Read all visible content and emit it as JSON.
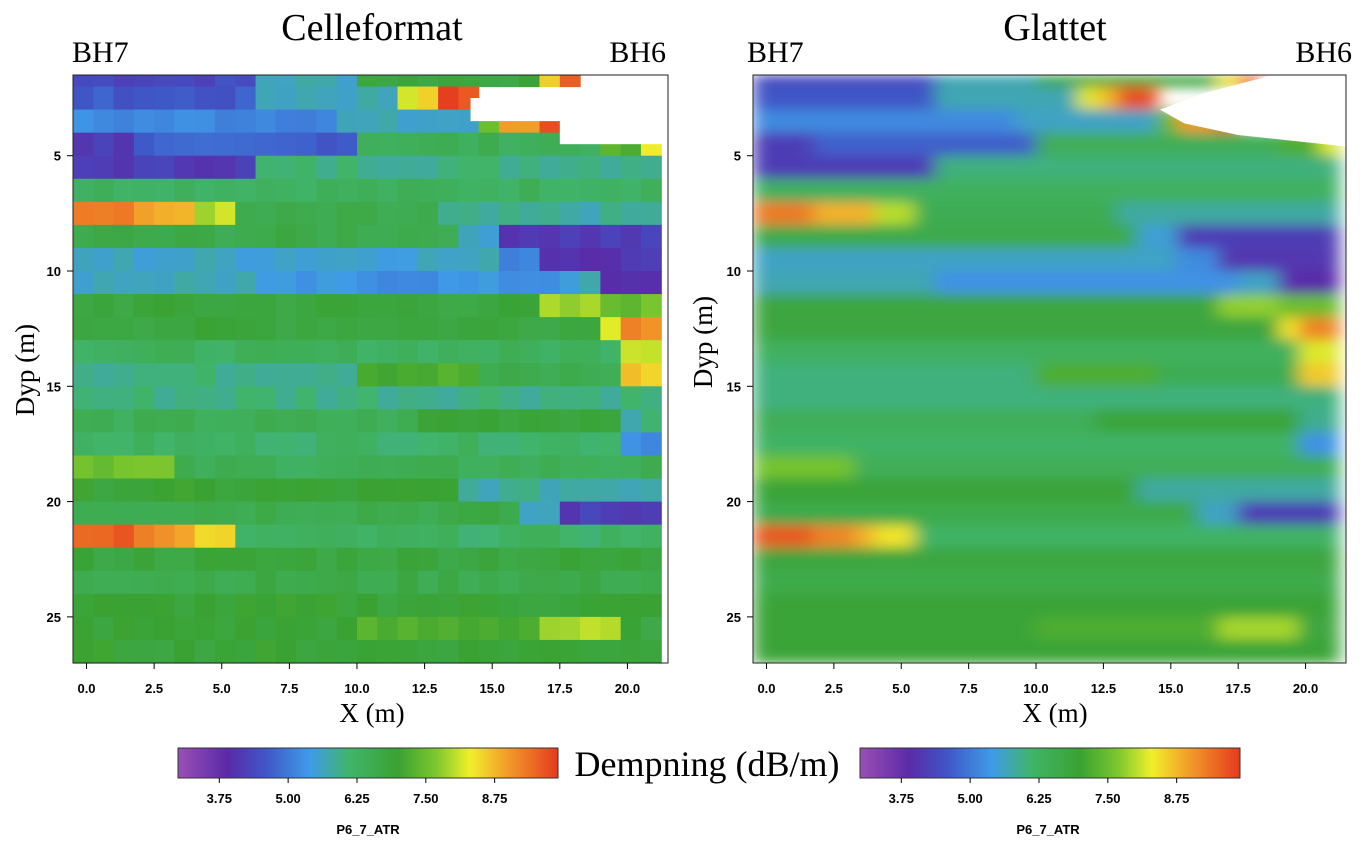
{
  "chart_data": [
    {
      "type": "heatmap",
      "title": "Celleformat",
      "left_label": "BH7",
      "right_label": "BH6",
      "xlabel": "X (m)",
      "ylabel": "Dyp (m)",
      "xlim": [
        -0.5,
        21.5
      ],
      "ylim": [
        27,
        1.5
      ],
      "x_ticks": [
        "0.0",
        "2.5",
        "5.0",
        "7.5",
        "10.0",
        "12.5",
        "15.0",
        "17.5",
        "20.0"
      ],
      "y_ticks": [
        "5",
        "10",
        "15",
        "20",
        "25"
      ],
      "cell_width_m": 0.75,
      "cell_height_m": 1.0,
      "render": "cells",
      "rows": [
        {
          "depth": 2,
          "bands": [
            [
              -0.5,
              6,
              4.4
            ],
            [
              6,
              10,
              5.7
            ],
            [
              10,
              16.5,
              6.8
            ],
            [
              16.5,
              17.5,
              8.4
            ],
            [
              17.5,
              18.5,
              9.7
            ]
          ]
        },
        {
          "depth": 3,
          "bands": [
            [
              -0.5,
              6,
              4.6
            ],
            [
              6,
              11.5,
              5.7
            ],
            [
              11.5,
              12.3,
              8.2
            ],
            [
              12.3,
              13.2,
              8.7
            ],
            [
              13.2,
              14.2,
              9.7
            ]
          ]
        },
        {
          "depth": 4,
          "bands": [
            [
              -0.5,
              9,
              5.2
            ],
            [
              9,
              14.5,
              5.6
            ],
            [
              14.5,
              15.5,
              7.4
            ],
            [
              15.5,
              16.5,
              9.0
            ],
            [
              16.5,
              17.5,
              9.8
            ]
          ]
        },
        {
          "depth": 5,
          "bands": [
            [
              -0.5,
              2,
              4.2
            ],
            [
              2,
              10,
              4.7
            ],
            [
              10,
              19,
              6.4
            ],
            [
              19,
              20.5,
              7.2
            ],
            [
              20.5,
              21.5,
              8.2
            ]
          ]
        },
        {
          "depth": 6,
          "bands": [
            [
              -0.5,
              6,
              4.2
            ],
            [
              6,
              21.5,
              6.0
            ]
          ]
        },
        {
          "depth": 7,
          "bands": [
            [
              -0.5,
              21.5,
              6.3
            ]
          ]
        },
        {
          "depth": 8,
          "bands": [
            [
              -0.5,
              2,
              9.3
            ],
            [
              2,
              4,
              8.8
            ],
            [
              4,
              5.5,
              8.0
            ],
            [
              5.5,
              13,
              6.5
            ],
            [
              13,
              21.5,
              5.8
            ]
          ]
        },
        {
          "depth": 9,
          "bands": [
            [
              -0.5,
              14,
              6.6
            ],
            [
              14,
              15,
              5.5
            ],
            [
              15,
              21.5,
              4.2
            ]
          ]
        },
        {
          "depth": 10,
          "bands": [
            [
              -0.5,
              15.5,
              5.6
            ],
            [
              15.5,
              17,
              5.2
            ],
            [
              17,
              21.5,
              4.1
            ]
          ]
        },
        {
          "depth": 11,
          "bands": [
            [
              -0.5,
              6,
              5.7
            ],
            [
              6,
              17.5,
              5.3
            ],
            [
              17.5,
              19,
              5.6
            ],
            [
              19,
              21.5,
              3.9
            ]
          ]
        },
        {
          "depth": 12,
          "bands": [
            [
              -0.5,
              17,
              6.8
            ],
            [
              17,
              19,
              7.8
            ],
            [
              19,
              21.5,
              7.5
            ]
          ]
        },
        {
          "depth": 13,
          "bands": [
            [
              -0.5,
              19,
              6.8
            ],
            [
              19,
              20,
              8.4
            ],
            [
              20,
              21.5,
              9.2
            ]
          ]
        },
        {
          "depth": 14,
          "bands": [
            [
              -0.5,
              19.5,
              6.3
            ],
            [
              19.5,
              21.5,
              8.2
            ]
          ]
        },
        {
          "depth": 15,
          "bands": [
            [
              -0.5,
              10,
              6.0
            ],
            [
              10,
              14.5,
              7.2
            ],
            [
              14.5,
              19.5,
              6.5
            ],
            [
              19.5,
              21.5,
              8.6
            ]
          ]
        },
        {
          "depth": 16,
          "bands": [
            [
              -0.5,
              21.5,
              6.0
            ]
          ]
        },
        {
          "depth": 17,
          "bands": [
            [
              -0.5,
              12,
              6.4
            ],
            [
              12,
              19.5,
              6.9
            ],
            [
              19.5,
              21.5,
              5.9
            ]
          ]
        },
        {
          "depth": 18,
          "bands": [
            [
              -0.5,
              20,
              6.2
            ],
            [
              20,
              21.5,
              5.3
            ]
          ]
        },
        {
          "depth": 19,
          "bands": [
            [
              -0.5,
              3,
              7.6
            ],
            [
              3,
              21.5,
              6.4
            ]
          ]
        },
        {
          "depth": 20,
          "bands": [
            [
              -0.5,
              14,
              6.9
            ],
            [
              14,
              21.5,
              5.8
            ]
          ]
        },
        {
          "depth": 21,
          "bands": [
            [
              -0.5,
              16,
              6.6
            ],
            [
              16,
              17.5,
              5.6
            ],
            [
              17.5,
              21.5,
              4.2
            ]
          ]
        },
        {
          "depth": 22,
          "bands": [
            [
              -0.5,
              2,
              9.6
            ],
            [
              2,
              3,
              9.2
            ],
            [
              3,
              4,
              8.8
            ],
            [
              4,
              5.5,
              8.4
            ],
            [
              5.5,
              21.5,
              6.2
            ]
          ]
        },
        {
          "depth": 23,
          "bands": [
            [
              -0.5,
              21.5,
              6.8
            ]
          ]
        },
        {
          "depth": 24,
          "bands": [
            [
              -0.5,
              21.5,
              6.6
            ]
          ]
        },
        {
          "depth": 25,
          "bands": [
            [
              -0.5,
              21.5,
              6.9
            ]
          ]
        },
        {
          "depth": 26,
          "bands": [
            [
              -0.5,
              10,
              6.9
            ],
            [
              10,
              17,
              7.2
            ],
            [
              17,
              20,
              7.9
            ],
            [
              20,
              21.5,
              6.8
            ]
          ]
        },
        {
          "depth": 27,
          "bands": [
            [
              -0.5,
              21.5,
              6.9
            ]
          ]
        }
      ],
      "blank_regions": [
        {
          "x0": 18.5,
          "x1": 21.5,
          "d0": 1.5,
          "d1": 2.5
        },
        {
          "x0": 14.2,
          "x1": 21.5,
          "d0": 2.5,
          "d1": 3.5
        },
        {
          "x0": 17.5,
          "x1": 21.5,
          "d0": 3.5,
          "d1": 4.5
        }
      ]
    },
    {
      "type": "heatmap",
      "title": "Glattet",
      "left_label": "BH7",
      "right_label": "BH6",
      "xlabel": "X (m)",
      "ylabel": "Dyp (m)",
      "xlim": [
        -0.5,
        21.5
      ],
      "ylim": [
        27,
        1.5
      ],
      "x_ticks": [
        "0.0",
        "2.5",
        "5.0",
        "7.5",
        "10.0",
        "12.5",
        "15.0",
        "17.5",
        "20.0"
      ],
      "y_ticks": [
        "5",
        "10",
        "15",
        "20",
        "25"
      ],
      "cell_width_m": 0.75,
      "cell_height_m": 1.0,
      "render": "smooth",
      "blank_region": {
        "top_edge_x": 21.5,
        "outline": [
          [
            18.8,
            1.5
          ],
          [
            21.5,
            1.5
          ],
          [
            21.5,
            4.6
          ],
          [
            17.5,
            4.1
          ],
          [
            15.5,
            3.6
          ],
          [
            14.6,
            3.0
          ],
          [
            16.2,
            2.3
          ]
        ]
      }
    }
  ],
  "legends": [
    {
      "title": "P6_7_ATR",
      "ticks": [
        "3.75",
        "5.00",
        "6.25",
        "7.50",
        "8.75"
      ],
      "tick_values": [
        3.75,
        5.0,
        6.25,
        7.5,
        8.75
      ],
      "range": [
        3.0,
        9.9
      ]
    },
    {
      "title": "P6_7_ATR",
      "ticks": [
        "3.75",
        "5.00",
        "6.25",
        "7.50",
        "8.75"
      ],
      "tick_values": [
        3.75,
        5.0,
        6.25,
        7.5,
        8.75
      ],
      "range": [
        3.0,
        9.9
      ]
    }
  ],
  "shared_label": "Dempning (dB/m)",
  "colorscale": [
    {
      "v": 3.0,
      "c": "#9b4fb5"
    },
    {
      "v": 3.9,
      "c": "#5a2aa8"
    },
    {
      "v": 4.6,
      "c": "#3f57c7"
    },
    {
      "v": 5.4,
      "c": "#3f9be8"
    },
    {
      "v": 6.1,
      "c": "#41b46b"
    },
    {
      "v": 7.0,
      "c": "#3aa232"
    },
    {
      "v": 7.7,
      "c": "#7ec82e"
    },
    {
      "v": 8.3,
      "c": "#f0f02a"
    },
    {
      "v": 8.9,
      "c": "#f2a52a"
    },
    {
      "v": 9.9,
      "c": "#e53a1e"
    }
  ]
}
